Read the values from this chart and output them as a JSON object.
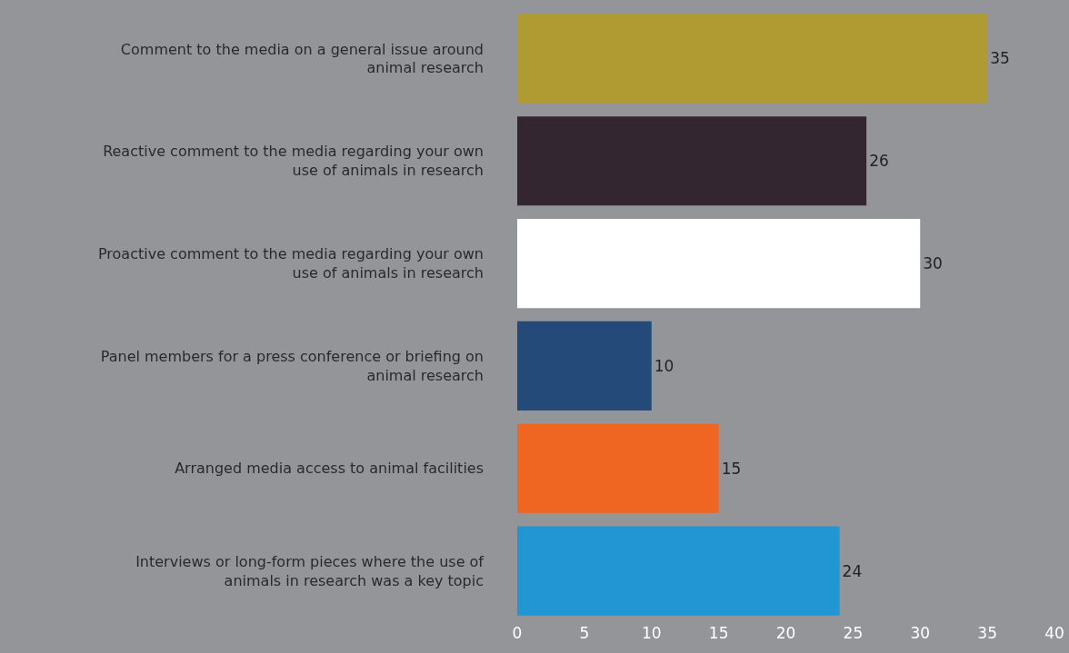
{
  "chart_data": {
    "type": "bar",
    "orientation": "horizontal",
    "categories": [
      "Comment to the media on a general issue around animal research",
      "Reactive comment to the media regarding your own use of animals in research",
      "Proactive comment to the media regarding your own use of animals in research",
      "Panel members for a press conference or briefing on animal research",
      "Arranged media access to animal facilities",
      "Interviews or long-form pieces where the use of animals in research was a key topic"
    ],
    "values": [
      35,
      26,
      30,
      10,
      15,
      24
    ],
    "colors": [
      "#b09a32",
      "#332630",
      "#ffffff",
      "#244a7a",
      "#ef6623",
      "#2196d3"
    ],
    "xlim": [
      0,
      40
    ],
    "xticks": [
      0,
      5,
      10,
      15,
      20,
      25,
      30,
      35,
      40
    ],
    "data_labels": true,
    "grid": false,
    "legend": false
  }
}
